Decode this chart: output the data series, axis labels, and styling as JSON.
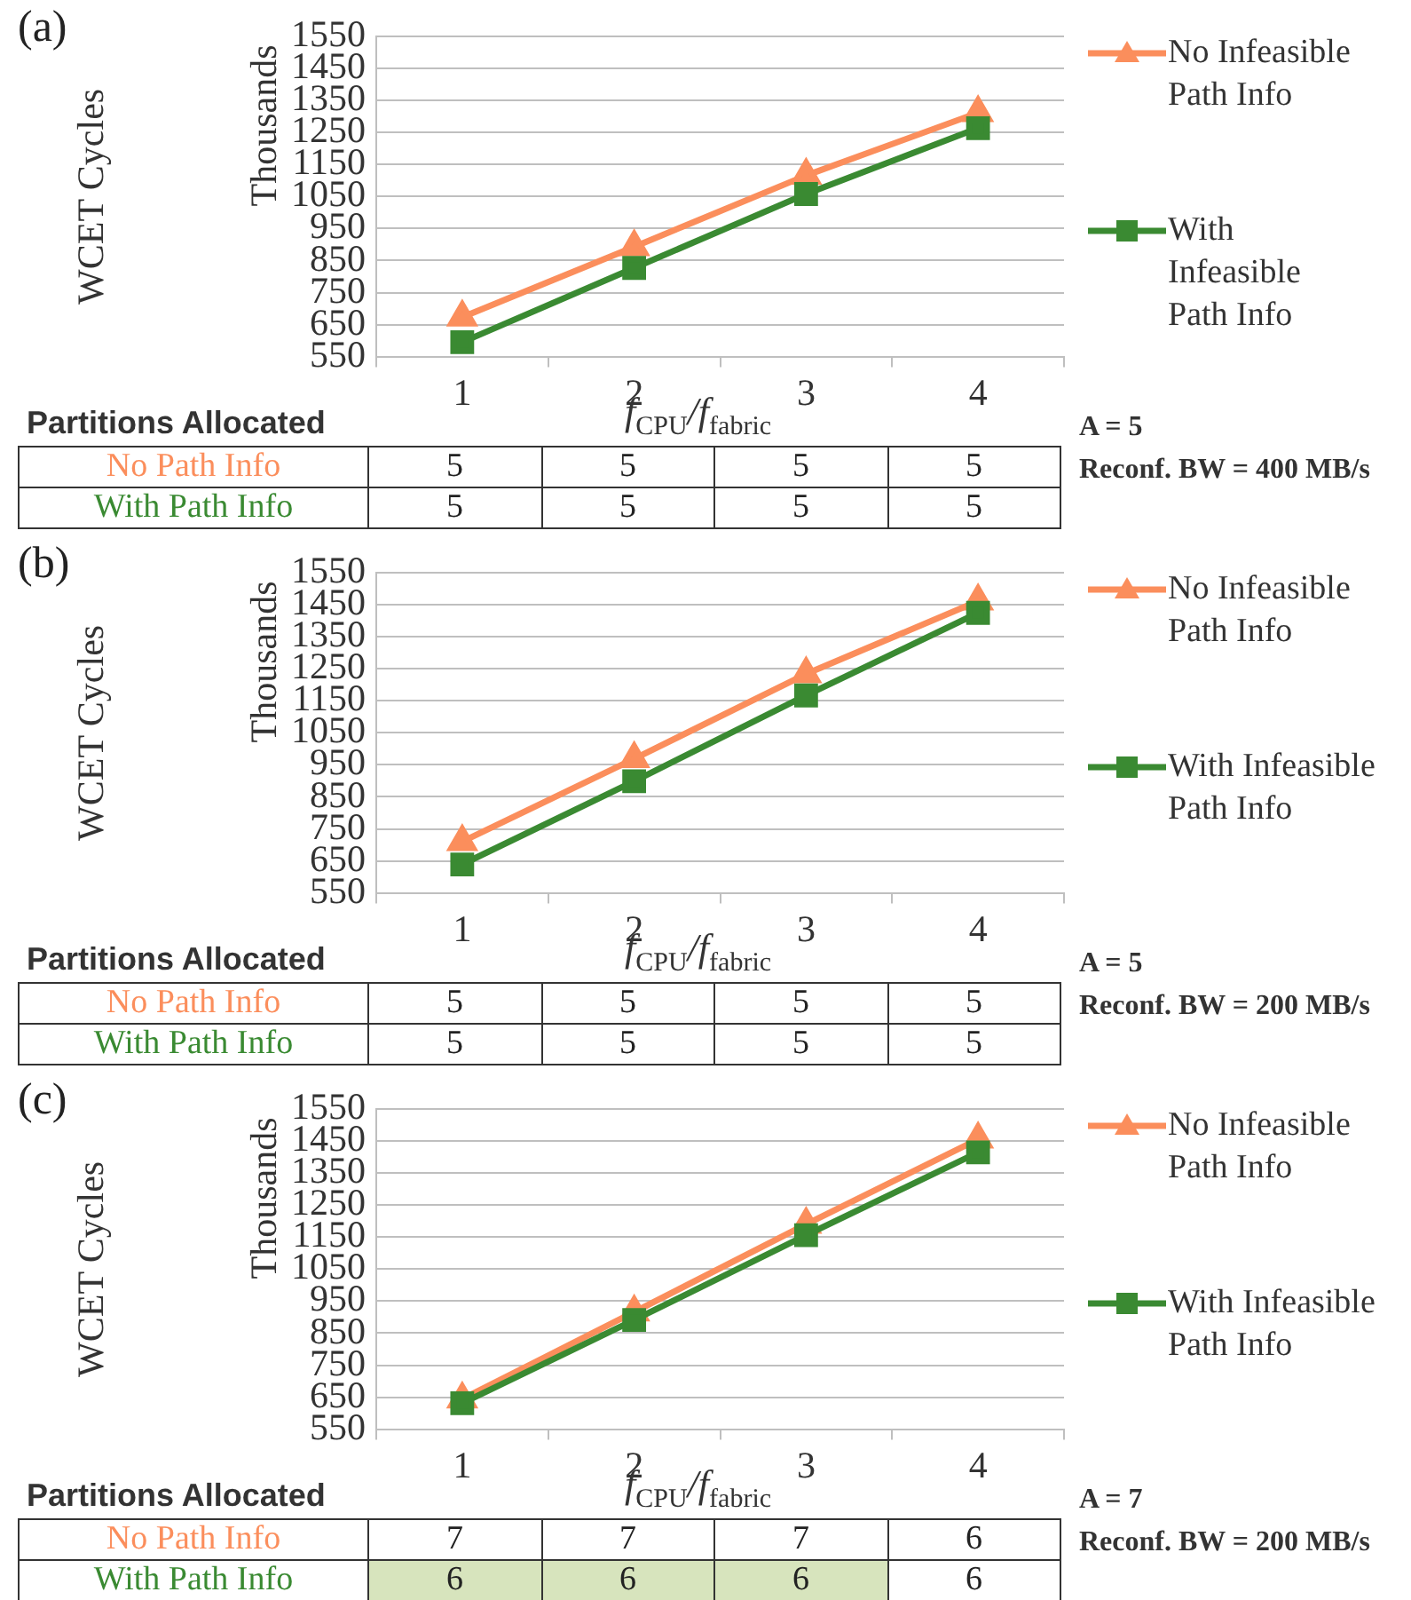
{
  "chart_data": [
    {
      "type": "line",
      "title": "(a)",
      "xlabel": "f$_{CPU}$/f$_{fabric}$",
      "ylabel": "WCET Cycles",
      "annotations": [
        "Thousands"
      ],
      "categories": [
        "1",
        "2",
        "3",
        "4"
      ],
      "ylim": [
        550,
        1550
      ],
      "yticks": [
        550,
        650,
        750,
        850,
        950,
        1050,
        1150,
        1250,
        1350,
        1450,
        1550
      ],
      "grid": "y",
      "legend": "right",
      "series": [
        {
          "name": "No Infeasible Path Info",
          "color": "#fb8e5c",
          "marker": "triangle",
          "values": [
            673,
            893,
            1116,
            1312
          ]
        },
        {
          "name": "With Infeasible Path Info",
          "color": "#3a8a32",
          "marker": "square",
          "values": [
            595,
            827,
            1058,
            1264
          ]
        }
      ]
    },
    {
      "type": "heatmap",
      "title": "Partitions Allocated",
      "categories": [
        null,
        null,
        null,
        null
      ],
      "y_categories": [
        "No Path Info",
        "With Path Info"
      ],
      "cells": [
        [
          5,
          5,
          5,
          5
        ],
        [
          5,
          5,
          5,
          5
        ]
      ],
      "data_labels": true,
      "annotations": [
        "A = 5",
        "Reconf. BW = 400 MB/s"
      ]
    },
    {
      "type": "line",
      "title": "(b)",
      "xlabel": "f$_{CPU}$/f$_{fabric}$",
      "ylabel": "WCET Cycles",
      "annotations": [
        "Thousands"
      ],
      "categories": [
        "1",
        "2",
        "3",
        "4"
      ],
      "ylim": [
        550,
        1550
      ],
      "yticks": [
        550,
        650,
        750,
        850,
        950,
        1050,
        1150,
        1250,
        1350,
        1450,
        1550
      ],
      "grid": "y",
      "legend": "right",
      "series": [
        {
          "name": "No Infeasible Path Info",
          "color": "#fb8e5c",
          "marker": "triangle",
          "values": [
            710,
            969,
            1234,
            1462
          ]
        },
        {
          "name": "With Infeasible Path Info",
          "color": "#3a8a32",
          "marker": "square",
          "values": [
            639,
            899,
            1167,
            1425
          ]
        }
      ]
    },
    {
      "type": "heatmap",
      "title": "Partitions Allocated",
      "categories": [
        null,
        null,
        null,
        null
      ],
      "y_categories": [
        "No Path Info",
        "With Path Info"
      ],
      "cells": [
        [
          5,
          5,
          5,
          5
        ],
        [
          5,
          5,
          5,
          5
        ]
      ],
      "data_labels": true,
      "annotations": [
        "A = 5",
        "Reconf. BW = 200 MB/s"
      ]
    },
    {
      "type": "line",
      "title": "(c)",
      "xlabel": "f$_{CPU}$/f$_{fabric}$",
      "ylabel": "WCET Cycles",
      "annotations": [
        "Thousands"
      ],
      "categories": [
        "1",
        "2",
        "3",
        "4"
      ],
      "ylim": [
        550,
        1550
      ],
      "yticks": [
        550,
        650,
        750,
        850,
        950,
        1050,
        1150,
        1250,
        1350,
        1450,
        1550
      ],
      "grid": "y",
      "legend": "right",
      "series": [
        {
          "name": "No Infeasible Path Info",
          "color": "#fb8e5c",
          "marker": "triangle",
          "values": [
            644,
            916,
            1190,
            1456
          ]
        },
        {
          "name": "With Infeasible Path Info",
          "color": "#3a8a32",
          "marker": "square",
          "values": [
            631,
            891,
            1156,
            1415
          ]
        }
      ]
    },
    {
      "type": "heatmap",
      "title": "Partitions Allocated",
      "categories": [
        null,
        null,
        null,
        null
      ],
      "y_categories": [
        "No Path Info",
        "With Path Info"
      ],
      "cells": [
        [
          7,
          7,
          7,
          6
        ],
        [
          6,
          6,
          6,
          6
        ]
      ],
      "data_labels": true,
      "colors": [
        [
          null,
          null,
          null,
          null
        ],
        [
          "#d7e4bd",
          "#d7e4bd",
          "#d7e4bd",
          null
        ]
      ],
      "annotations": [
        "A = 7",
        "Reconf. BW = 200 MB/s"
      ]
    }
  ]
}
